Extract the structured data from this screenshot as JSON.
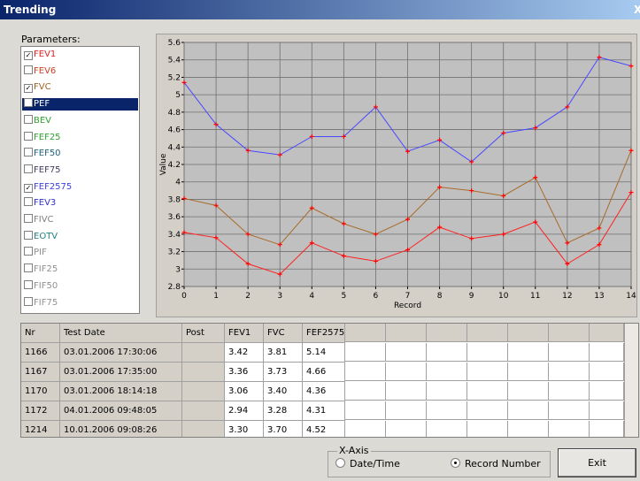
{
  "window": {
    "title": "Trending",
    "close": "X"
  },
  "parameters": {
    "label": "Parameters:",
    "items": [
      {
        "label": "FEV1",
        "color": "#e02020",
        "checked": true,
        "selected": false
      },
      {
        "label": "FEV6",
        "color": "#d04020",
        "checked": false,
        "selected": false
      },
      {
        "label": "FVC",
        "color": "#a06020",
        "checked": true,
        "selected": false
      },
      {
        "label": "PEF",
        "color": "#ffffff",
        "checked": false,
        "selected": true
      },
      {
        "label": "BEV",
        "color": "#30a030",
        "checked": false,
        "selected": false
      },
      {
        "label": "FEF25",
        "color": "#30a030",
        "checked": false,
        "selected": false
      },
      {
        "label": "FEF50",
        "color": "#206080",
        "checked": false,
        "selected": false
      },
      {
        "label": "FEF75",
        "color": "#404060",
        "checked": false,
        "selected": false
      },
      {
        "label": "FEF2575",
        "color": "#4040e0",
        "checked": true,
        "selected": false
      },
      {
        "label": "FEV3",
        "color": "#3030d0",
        "checked": false,
        "selected": false
      },
      {
        "label": "FIVC",
        "color": "#808080",
        "checked": false,
        "selected": false
      },
      {
        "label": "EOTV",
        "color": "#208080",
        "checked": false,
        "selected": false
      },
      {
        "label": "PIF",
        "color": "#909090",
        "checked": false,
        "selected": false
      },
      {
        "label": "FIF25",
        "color": "#909090",
        "checked": false,
        "selected": false
      },
      {
        "label": "FIF50",
        "color": "#909090",
        "checked": false,
        "selected": false
      },
      {
        "label": "FIF75",
        "color": "#909090",
        "checked": false,
        "selected": false
      }
    ]
  },
  "chart_data": {
    "type": "line",
    "x_label": "Record",
    "y_label": "Value",
    "x": [
      0,
      1,
      2,
      3,
      4,
      5,
      6,
      7,
      8,
      9,
      10,
      11,
      12,
      13,
      14
    ],
    "xlim": [
      0,
      14
    ],
    "xticks": [
      0,
      1,
      2,
      3,
      4,
      5,
      6,
      7,
      8,
      9,
      10,
      11,
      12,
      13,
      14
    ],
    "ylim": [
      2.8,
      5.6
    ],
    "yticks": [
      2.8,
      3,
      3.2,
      3.4,
      3.6,
      3.8,
      4,
      4.2,
      4.4,
      4.6,
      4.8,
      5,
      5.2,
      5.4,
      5.6
    ],
    "grid": true,
    "marker_color": "#ff0000",
    "series": [
      {
        "color": "#4848ff",
        "values": [
          5.14,
          4.66,
          4.36,
          4.31,
          4.52,
          4.52,
          4.86,
          4.35,
          4.48,
          4.23,
          4.56,
          4.62,
          4.86,
          5.43,
          5.33
        ]
      },
      {
        "color": "#a86a28",
        "values": [
          3.81,
          3.73,
          3.4,
          3.28,
          3.7,
          3.52,
          3.4,
          3.57,
          3.94,
          3.9,
          3.84,
          4.05,
          3.3,
          3.47,
          4.36
        ]
      },
      {
        "color": "#ff2020",
        "values": [
          3.42,
          3.36,
          3.06,
          2.94,
          3.3,
          3.15,
          3.09,
          3.22,
          3.48,
          3.35,
          3.4,
          3.54,
          3.06,
          3.28,
          3.88
        ]
      }
    ]
  },
  "table": {
    "headers": [
      "Nr",
      "Test Date",
      "Post",
      "FEV1",
      "FVC",
      "FEF2575"
    ],
    "rows": [
      {
        "nr": 1166,
        "date": "03.01.2006 17:30:06",
        "fev1": "3.42",
        "fvc": "3.81",
        "fef2575": "5.14"
      },
      {
        "nr": 1167,
        "date": "03.01.2006 17:35:00",
        "fev1": "3.36",
        "fvc": "3.73",
        "fef2575": "4.66"
      },
      {
        "nr": 1170,
        "date": "03.01.2006 18:14:18",
        "fev1": "3.06",
        "fvc": "3.40",
        "fef2575": "4.36"
      },
      {
        "nr": 1172,
        "date": "04.01.2006 09:48:05",
        "fev1": "2.94",
        "fvc": "3.28",
        "fef2575": "4.31"
      },
      {
        "nr": 1214,
        "date": "10.01.2006 09:08:26",
        "fev1": "3.30",
        "fvc": "3.70",
        "fef2575": "4.52"
      }
    ]
  },
  "x_axis": {
    "label": "X-Axis",
    "options": [
      "Date/Time",
      "Record Number"
    ],
    "selected_index": 1
  },
  "exit": "Exit"
}
